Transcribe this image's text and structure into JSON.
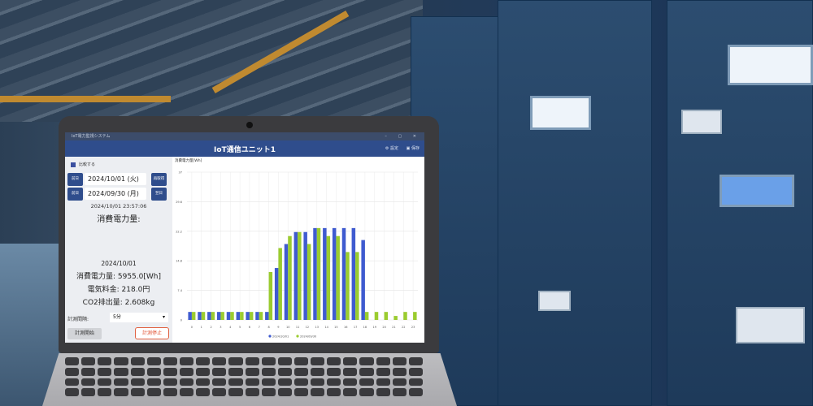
{
  "window": {
    "title": "IoT電力監視システム",
    "controls": "– ▢ ✕"
  },
  "header": {
    "title": "IoT通信ユニット1",
    "settings_label": "設定",
    "save_label": "保存",
    "settings_icon": "gear-icon",
    "save_icon": "save-icon"
  },
  "left": {
    "compare_label": "比較する",
    "compare_checked": true,
    "row1": {
      "prev_label": "前日",
      "date": "2024/10/01 (火)",
      "refresh_label": "再取得"
    },
    "row2": {
      "prev_label": "前日",
      "date": "2024/09/30 (月)",
      "next_label": "翌日"
    },
    "timestamp": "2024/10/01 23:57:06",
    "power_heading": "消費電力量:",
    "summary": {
      "date": "2024/10/01",
      "power": "消費電力量: 5955.0[Wh]",
      "cost": "電気料金: 218.0円",
      "co2": "CO2排出量: 2.608kg"
    },
    "interval_label": "計測間隔:",
    "interval_value": "5分",
    "start_label": "計測開始",
    "stop_label": "計測停止"
  },
  "chart_data": {
    "type": "bar",
    "ylabel": "消費電力量[Wh]",
    "ylim": [
      0,
      37
    ],
    "yticks": [
      "0",
      "7.4",
      "14.8",
      "22.2",
      "29.6",
      "37"
    ],
    "categories": [
      "0",
      "1",
      "2",
      "3",
      "4",
      "5",
      "6",
      "7",
      "8",
      "9",
      "10",
      "11",
      "12",
      "13",
      "14",
      "15",
      "16",
      "17",
      "18",
      "19",
      "20",
      "21",
      "22",
      "23"
    ],
    "grid": true,
    "legend": "bottom",
    "series": [
      {
        "name": "2024/10/01",
        "color": "#3f5bd0",
        "values": [
          2,
          2,
          2,
          2,
          2,
          2,
          2,
          2,
          2,
          13,
          19,
          22,
          22,
          23,
          23,
          23,
          23,
          23,
          20,
          null,
          null,
          null,
          null,
          null
        ]
      },
      {
        "name": "2024/09/30",
        "color": "#9bcc2f",
        "values": [
          2,
          2,
          2,
          2,
          2,
          2,
          2,
          2,
          12,
          18,
          21,
          22,
          19,
          23,
          21,
          21,
          17,
          17,
          2,
          2,
          2,
          1,
          2,
          2
        ]
      }
    ]
  }
}
